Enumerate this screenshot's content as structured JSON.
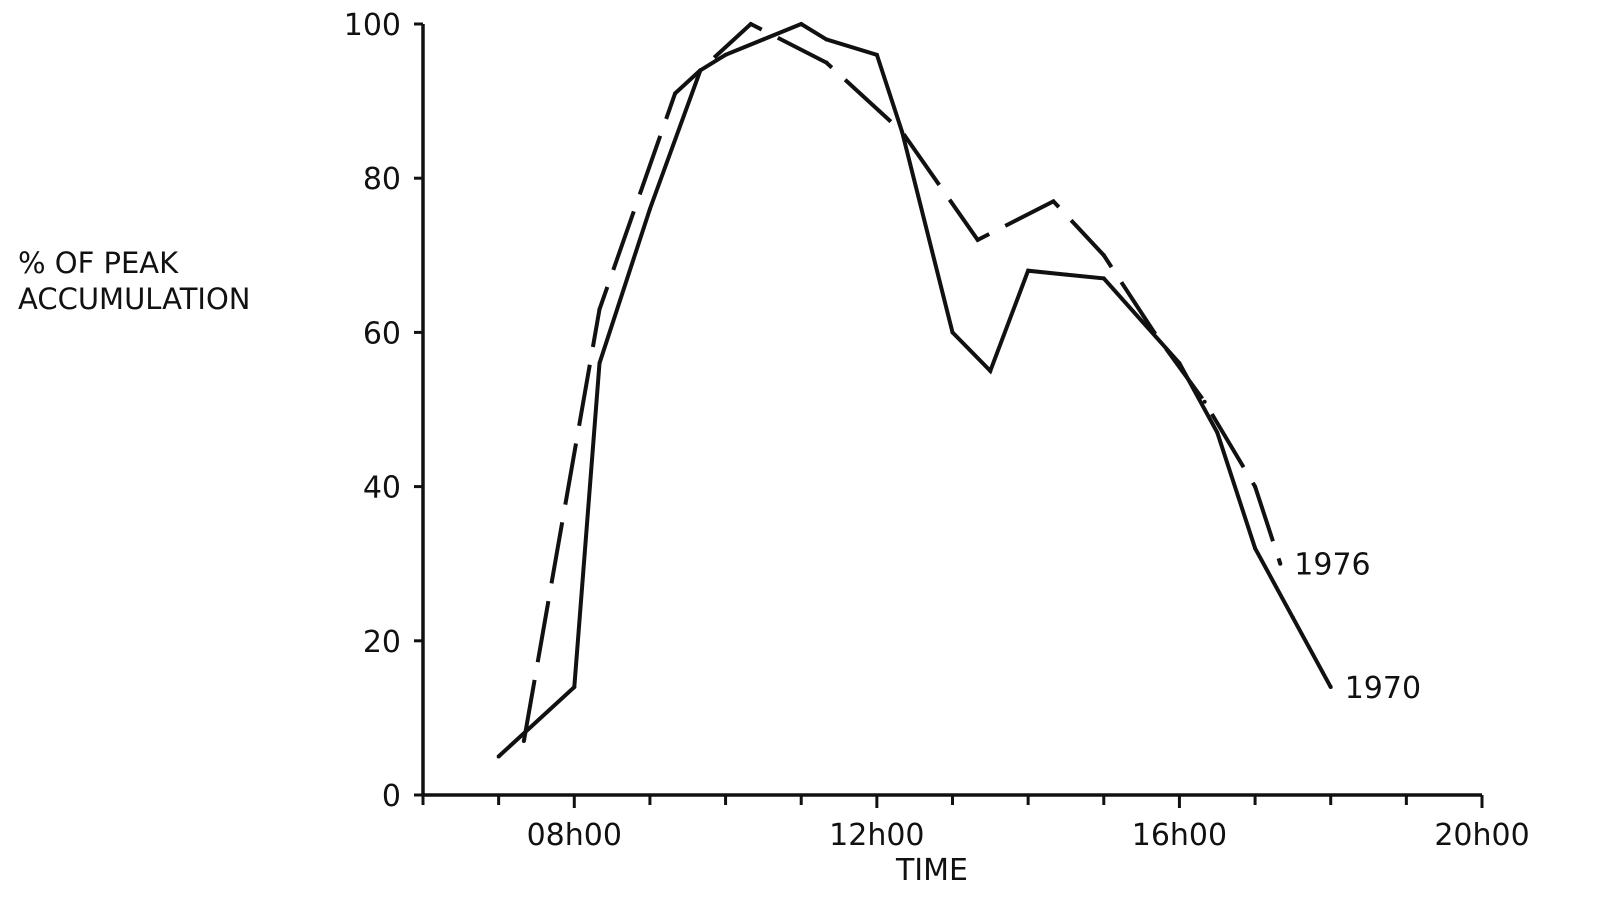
{
  "chart_data": {
    "type": "line",
    "title": "",
    "xlabel": "TIME",
    "ylabel": [
      "% OF PEAK",
      "ACCUMULATION"
    ],
    "xlim": [
      "06h00",
      "20h00"
    ],
    "ylim": [
      0,
      100
    ],
    "x_ticks_labeled": [
      "08h00",
      "12h00",
      "16h00",
      "20h00"
    ],
    "x_ticks_minor": [
      "06h00",
      "07h00",
      "08h00",
      "09h00",
      "10h00",
      "11h00",
      "12h00",
      "13h00",
      "14h00",
      "15h00",
      "16h00",
      "17h00",
      "18h00",
      "19h00",
      "20h00"
    ],
    "y_ticks": [
      0,
      20,
      40,
      60,
      80,
      100
    ],
    "grid": false,
    "legend": "none",
    "series": [
      {
        "name": "1970",
        "line_style": "solid",
        "color": "#111111",
        "x": [
          "07h00",
          "08h00",
          "08h20",
          "09h00",
          "09h40",
          "10h00",
          "10h30",
          "11h00",
          "11h20",
          "12h00",
          "12h20",
          "13h00",
          "13h30",
          "14h00",
          "14h30",
          "15h00",
          "16h00",
          "16h30",
          "17h00",
          "17h30",
          "18h00"
        ],
        "y": [
          5,
          14,
          56,
          76,
          94,
          96,
          98,
          100,
          98,
          96,
          86,
          60,
          55,
          68,
          67.5,
          67,
          56,
          47,
          32,
          23,
          14
        ]
      },
      {
        "name": "1976",
        "line_style": "dashed",
        "color": "#111111",
        "x": [
          "07h20",
          "08h20",
          "09h20",
          "10h20",
          "11h20",
          "12h20",
          "13h20",
          "14h20",
          "15h00",
          "15h40",
          "16h20",
          "17h00",
          "17h20"
        ],
        "y": [
          7,
          63,
          91,
          100,
          95,
          86,
          72,
          77,
          70,
          60,
          51,
          40,
          30
        ]
      }
    ]
  }
}
